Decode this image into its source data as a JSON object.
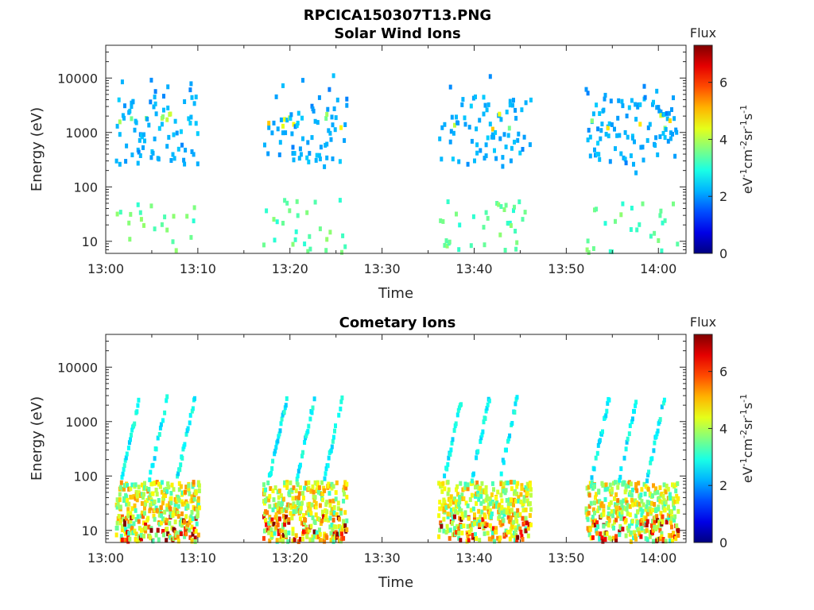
{
  "figure_title": "RPCICA150307T13.PNG",
  "chart_data": [
    {
      "type": "heatmap",
      "title": "Solar Wind Ions",
      "xlabel": "Time",
      "ylabel": "Energy (eV)",
      "y_scale": "log",
      "ylim": [
        6,
        40000
      ],
      "x_range_minutes": [
        0,
        63
      ],
      "x_ticks": [
        "13:00",
        "13:10",
        "13:20",
        "13:30",
        "13:40",
        "13:50",
        "14:00"
      ],
      "y_ticks": [
        "10",
        "100",
        "1000",
        "10000"
      ],
      "colorbar": {
        "title": "Flux",
        "label_parts": [
          "eV",
          "-1",
          "cm",
          "-2",
          "sr",
          "-1",
          "s",
          "-1"
        ],
        "ticks": [
          "0",
          "2",
          "4",
          "6"
        ],
        "range": [
          0,
          7.3
        ],
        "colormap": "jet"
      },
      "bursts": [
        {
          "start": "13:01",
          "end": "13:10"
        },
        {
          "start": "13:17",
          "end": "13:26"
        },
        {
          "start": "13:36",
          "end": "13:46"
        },
        {
          "start": "13:52",
          "end": "14:02"
        }
      ],
      "typical_flux": {
        "above_300_eV": 2,
        "below_100_eV": 3
      }
    },
    {
      "type": "heatmap",
      "title": "Cometary Ions",
      "xlabel": "Time",
      "ylabel": "Energy (eV)",
      "y_scale": "log",
      "ylim": [
        6,
        40000
      ],
      "x_range_minutes": [
        0,
        63
      ],
      "x_ticks": [
        "13:00",
        "13:10",
        "13:20",
        "13:30",
        "13:40",
        "13:50",
        "14:00"
      ],
      "y_ticks": [
        "10",
        "100",
        "1000",
        "10000"
      ],
      "colorbar": {
        "title": "Flux",
        "label_parts": [
          "eV",
          "-1",
          "cm",
          "-2",
          "sr",
          "-1",
          "s",
          "-1"
        ],
        "ticks": [
          "0",
          "2",
          "4",
          "6"
        ],
        "range": [
          0,
          7.3
        ],
        "colormap": "jet"
      },
      "bursts": [
        {
          "start": "13:01",
          "end": "13:10"
        },
        {
          "start": "13:17",
          "end": "13:26"
        },
        {
          "start": "13:36",
          "end": "13:46"
        },
        {
          "start": "13:52",
          "end": "14:02"
        }
      ],
      "typical_flux": {
        "above_300_eV": 2,
        "below_100_eV": 4.5,
        "peak": 7
      }
    }
  ]
}
